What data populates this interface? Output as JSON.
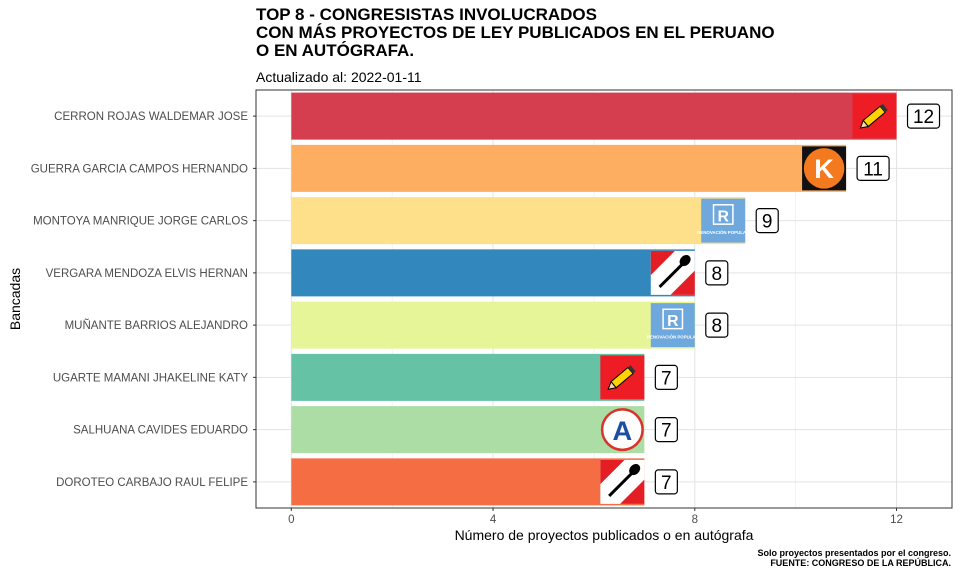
{
  "title_lines": [
    "TOP 8 - CONGRESISTAS INVOLUCRADOS",
    "CON MÁS PROYECTOS DE LEY PUBLICADOS EN EL PERUANO",
    "O EN AUTÓGRAFA."
  ],
  "subtitle": "Actualizado al: 2022-01-11",
  "caption_lines": [
    "Solo proyectos presentados por el congreso.",
    "FUENTE: CONGRESO DE LA REPÚBLICA."
  ],
  "chart_data": {
    "type": "bar",
    "orientation": "horizontal",
    "xlabel": "Número de proyectos publicados o en autógrafa",
    "ylabel": "Bancadas",
    "xlim": [
      -0.7,
      13.1
    ],
    "xticks": [
      0,
      4,
      8,
      12
    ],
    "grid": true,
    "legend": "none",
    "categories": [
      "CERRON ROJAS WALDEMAR JOSE",
      "GUERRA GARCIA CAMPOS HERNANDO",
      "MONTOYA MANRIQUE JORGE CARLOS",
      "VERGARA MENDOZA ELVIS HERNAN",
      "MUÑANTE BARRIOS ALEJANDRO",
      "UGARTE MAMANI JHAKELINE KATY",
      "SALHUANA CAVIDES EDUARDO",
      "DOROTEO CARBAJO RAUL FELIPE"
    ],
    "values": [
      12,
      11,
      9,
      8,
      8,
      7,
      7,
      7
    ],
    "value_labels": [
      "12",
      "11",
      "9",
      "8",
      "8",
      "7",
      "7",
      "7"
    ],
    "colors": [
      "#d53e4f",
      "#fdae61",
      "#fee08b",
      "#3288bd",
      "#e6f598",
      "#66c2a5",
      "#abdda4",
      "#f46d43"
    ],
    "party_icons": [
      "pencil-logo",
      "k-logo",
      "renovacion-logo",
      "shovel-logo",
      "renovacion-logo",
      "pencil-logo",
      "a-logo",
      "shovel-logo"
    ],
    "logo_text": {
      "k": "K",
      "r": "R",
      "a": "A",
      "renovacion": "RENOVACIÓN POPULAR"
    }
  }
}
